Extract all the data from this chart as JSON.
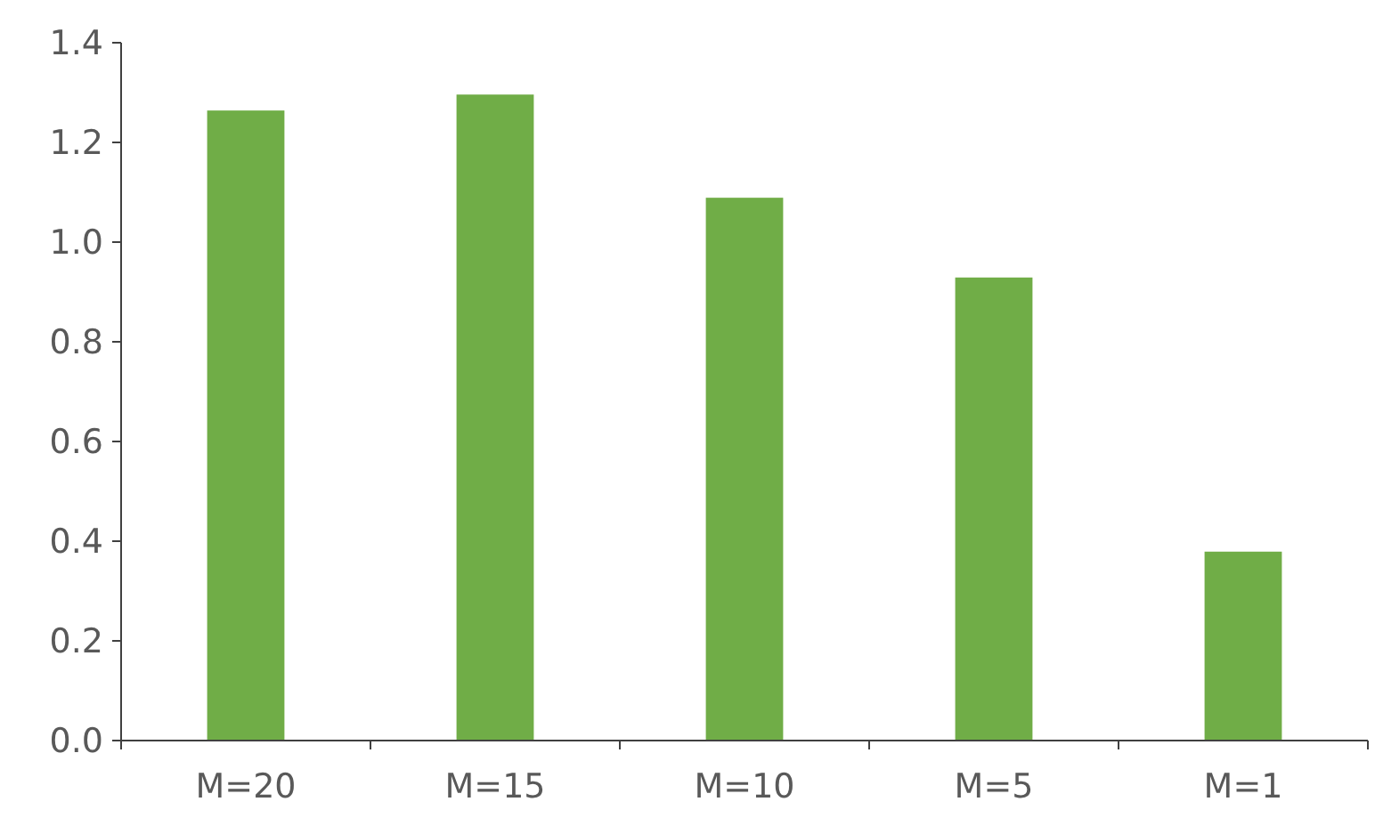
{
  "chart_data": {
    "type": "bar",
    "categories": [
      "M=20",
      "M=15",
      "M=10",
      "M=5",
      "M=1"
    ],
    "series": [
      {
        "color": "#70ad47",
        "values": [
          1.264,
          1.296,
          1.089,
          0.929,
          0.379
        ]
      }
    ],
    "ylim": [
      0,
      1.4
    ],
    "yticks": [
      {
        "value": 0,
        "label": "0.0"
      },
      {
        "value": 0.2,
        "label": "0.2"
      },
      {
        "value": 0.4,
        "label": "0.4"
      },
      {
        "value": 0.6,
        "label": "0.6"
      },
      {
        "value": 0.8,
        "label": "0.8"
      },
      {
        "value": 1,
        "label": "1.0"
      },
      {
        "value": 1.2,
        "label": "1.2"
      },
      {
        "value": 1.4,
        "label": "1.4"
      }
    ],
    "grid": false
  }
}
